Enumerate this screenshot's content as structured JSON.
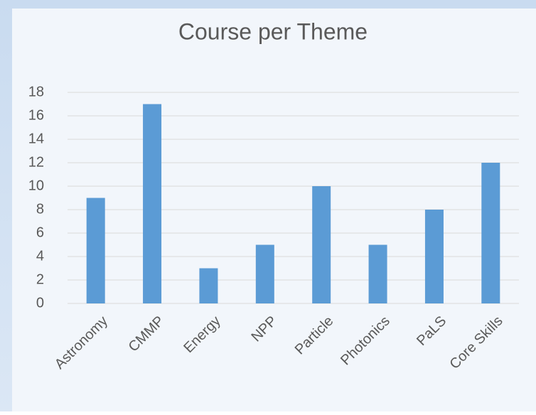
{
  "chart_data": {
    "type": "bar",
    "title": "Course per Theme",
    "categories": [
      "Astronomy",
      "CMMP",
      "Energy",
      "NPP",
      "Particle",
      "Photonics",
      "PaLS",
      "Core Skills"
    ],
    "values": [
      9,
      17,
      3,
      5,
      10,
      5,
      8,
      12
    ],
    "color": "#5b9bd5",
    "ylim": [
      0,
      18
    ],
    "yticks": [
      0,
      2,
      4,
      6,
      8,
      10,
      12,
      14,
      16,
      18
    ],
    "grid": true
  }
}
